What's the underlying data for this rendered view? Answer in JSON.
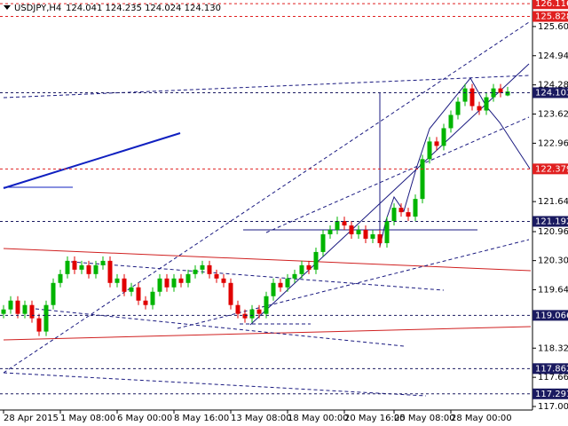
{
  "chart_data": {
    "type": "candlestick",
    "title": "USDJPY,H4",
    "ohlc_text": "124.041 124.235 124.024 124.130",
    "categories": [
      "28 Apr 2015",
      null,
      null,
      null,
      null,
      null,
      null,
      null,
      "1 May 08:00",
      null,
      null,
      null,
      null,
      null,
      null,
      null,
      "6 May 00:00",
      null,
      null,
      null,
      null,
      null,
      null,
      null,
      "8 May 16:00",
      null,
      null,
      null,
      null,
      null,
      null,
      null,
      "13 May 08:00",
      null,
      null,
      null,
      null,
      null,
      null,
      null,
      "18 May 00:00",
      null,
      null,
      null,
      null,
      null,
      null,
      null,
      "20 May 16:00",
      null,
      null,
      null,
      null,
      null,
      null,
      "25 May 08:00",
      null,
      null,
      null,
      null,
      null,
      null,
      null,
      "28 May 00:00",
      null,
      null,
      null,
      null,
      null,
      null,
      null,
      null
    ],
    "open": [
      119.1,
      119.2,
      119.4,
      119.1,
      119.3,
      119.0,
      118.7,
      119.3,
      119.8,
      120.0,
      120.3,
      120.1,
      120.2,
      120.0,
      120.2,
      120.3,
      119.8,
      119.9,
      119.6,
      119.7,
      119.4,
      119.3,
      119.6,
      119.9,
      119.7,
      119.9,
      119.8,
      120.0,
      120.1,
      120.2,
      120.0,
      119.9,
      119.8,
      119.3,
      119.1,
      119.0,
      119.2,
      119.1,
      119.5,
      119.8,
      119.7,
      119.9,
      120.0,
      120.2,
      120.1,
      120.5,
      120.9,
      121.0,
      121.2,
      121.1,
      120.9,
      121.0,
      120.8,
      120.9,
      120.7,
      121.2,
      121.5,
      121.4,
      121.3,
      121.7,
      122.6,
      123.0,
      122.9,
      123.3,
      123.6,
      123.9,
      124.2,
      123.8,
      123.7,
      124.0,
      124.2,
      124.041
    ],
    "high": [
      119.3,
      119.5,
      119.5,
      119.4,
      119.4,
      119.1,
      119.4,
      119.9,
      120.1,
      120.4,
      120.4,
      120.3,
      120.3,
      120.3,
      120.4,
      120.4,
      120.0,
      120.0,
      119.8,
      119.8,
      119.5,
      119.7,
      120.0,
      120.0,
      120.0,
      120.0,
      120.1,
      120.2,
      120.3,
      120.3,
      120.1,
      120.0,
      119.9,
      119.4,
      119.2,
      119.3,
      119.3,
      119.6,
      119.9,
      119.9,
      120.0,
      120.1,
      120.3,
      120.3,
      120.6,
      121.0,
      121.1,
      121.3,
      121.3,
      121.2,
      121.1,
      121.1,
      121.0,
      121.0,
      121.3,
      121.6,
      121.6,
      121.5,
      121.8,
      122.7,
      123.1,
      123.1,
      123.4,
      123.7,
      124.0,
      124.3,
      124.3,
      123.9,
      124.1,
      124.3,
      124.3,
      124.235
    ],
    "low": [
      119.0,
      119.1,
      119.0,
      119.0,
      118.9,
      118.6,
      118.6,
      119.2,
      119.7,
      119.9,
      120.0,
      120.0,
      119.9,
      119.9,
      120.1,
      119.7,
      119.7,
      119.5,
      119.5,
      119.3,
      119.2,
      119.2,
      119.5,
      119.6,
      119.6,
      119.7,
      119.7,
      119.9,
      120.0,
      119.9,
      119.8,
      119.7,
      119.2,
      119.0,
      118.9,
      118.9,
      119.0,
      119.0,
      119.4,
      119.6,
      119.6,
      119.8,
      119.9,
      120.0,
      120.0,
      120.4,
      120.8,
      120.9,
      121.0,
      120.8,
      120.8,
      120.7,
      120.7,
      120.6,
      120.6,
      121.1,
      121.3,
      121.2,
      121.2,
      121.6,
      122.5,
      122.8,
      122.8,
      123.2,
      123.5,
      123.8,
      123.7,
      123.6,
      123.6,
      123.9,
      124.0,
      124.024
    ],
    "close": [
      119.2,
      119.4,
      119.1,
      119.3,
      119.0,
      118.7,
      119.3,
      119.8,
      120.0,
      120.3,
      120.1,
      120.2,
      120.0,
      120.2,
      120.3,
      119.8,
      119.9,
      119.6,
      119.7,
      119.4,
      119.3,
      119.6,
      119.9,
      119.7,
      119.9,
      119.8,
      120.0,
      120.1,
      120.2,
      120.0,
      119.9,
      119.8,
      119.3,
      119.1,
      119.0,
      119.2,
      119.1,
      119.5,
      119.8,
      119.7,
      119.9,
      120.0,
      120.2,
      120.1,
      120.5,
      120.9,
      121.0,
      121.2,
      121.1,
      120.9,
      121.0,
      120.8,
      120.9,
      120.7,
      121.2,
      121.5,
      121.4,
      121.3,
      121.7,
      122.6,
      123.0,
      122.9,
      123.3,
      123.6,
      123.9,
      124.2,
      123.8,
      123.7,
      124.0,
      124.2,
      124.1,
      124.13
    ],
    "up_color": "#00b400",
    "down_color": "#e00000",
    "ylim": [
      116.925,
      126.2
    ],
    "yticks": [
      {
        "value": 125.6,
        "label": "125.600"
      },
      {
        "value": 124.94,
        "label": "124.940"
      },
      {
        "value": 124.28,
        "label": "124.280"
      },
      {
        "value": 123.62,
        "label": "123.620"
      },
      {
        "value": 122.96,
        "label": "122.960"
      },
      {
        "value": 121.64,
        "label": "121.640"
      },
      {
        "value": 120.96,
        "label": "120.960"
      },
      {
        "value": 120.305,
        "label": "120.305"
      },
      {
        "value": 119.645,
        "label": "119.645"
      },
      {
        "value": 118.325,
        "label": "118.325"
      },
      {
        "value": 117.665,
        "label": "117.665"
      },
      {
        "value": 117.005,
        "label": "117.005"
      }
    ],
    "levels": [
      {
        "value": 126.116,
        "color": "#e02020"
      },
      {
        "value": 125.828,
        "color": "#e02020"
      },
      {
        "value": 124.103,
        "color": "#1a1a60"
      },
      {
        "value": 122.379,
        "color": "#e02020"
      },
      {
        "value": 121.192,
        "color": "#1a1a60"
      },
      {
        "value": 119.066,
        "color": "#1a1a60"
      },
      {
        "value": 117.862,
        "color": "#1a1a60"
      },
      {
        "value": 117.291,
        "color": "#1a1a60"
      }
    ]
  }
}
